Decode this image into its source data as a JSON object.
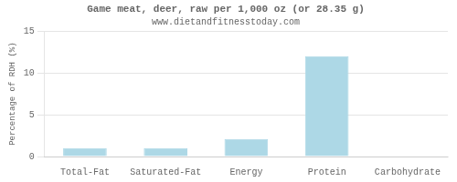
{
  "chart_data": {
    "type": "bar",
    "title": "Game meat, deer, raw per 1,000 oz (or 28.35 g)",
    "subtitle": "www.dietandfitnesstoday.com",
    "categories": [
      "Total-Fat",
      "Saturated-Fat",
      "Energy",
      "Protein",
      "Carbohydrate"
    ],
    "values": [
      1.0,
      1.0,
      2.1,
      12.0,
      0.05
    ],
    "color": "#add8e6",
    "ylabel": "Percentage of RDH (%)",
    "ylim": [
      0,
      15
    ],
    "yticks": [
      0,
      5,
      10,
      15
    ],
    "grid": true
  }
}
